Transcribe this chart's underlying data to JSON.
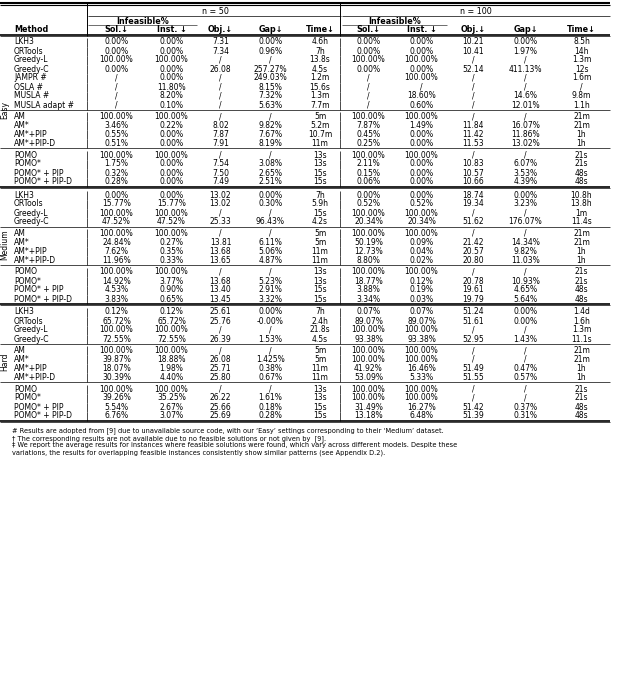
{
  "title_n50": "n = 50",
  "title_n100": "n = 100",
  "infeasible_label": "Infeasible%",
  "sections": [
    {
      "name": "Easy",
      "baselines": [
        [
          "LKH3",
          "0.00%",
          "0.00%",
          "7.31",
          "0.00%",
          "4.6h",
          "0.00%",
          "0.00%",
          "10.21",
          "0.00%",
          "8.5h"
        ],
        [
          "ORTools",
          "0.00%",
          "0.00%",
          "7.34",
          "0.96%",
          "7h",
          "0.00%",
          "0.00%",
          "10.41",
          "1.97%",
          "14h"
        ],
        [
          "Greedy-L",
          "100.00%",
          "100.00%",
          "/",
          "/",
          "13.8s",
          "100.00%",
          "100.00%",
          "/",
          "/",
          "1.3m"
        ],
        [
          "Greedy-C",
          "0.00%",
          "0.00%",
          "26.08",
          "257.27%",
          "4.5s",
          "0.00%",
          "0.00%",
          "52.14",
          "411.13%",
          "12s"
        ],
        [
          "JAMPR #",
          "/",
          "0.00%",
          "/",
          "249.03%",
          "1.2m",
          "/",
          "100.00%",
          "/",
          "/",
          "1.6m"
        ],
        [
          "OSLA #",
          "/",
          "11.80%",
          "/",
          "8.15%",
          "15.6s",
          "/",
          "/",
          "/",
          "/",
          "/"
        ],
        [
          "MUSLA #",
          "/",
          "8.20%",
          "/",
          "7.32%",
          "1.3m",
          "/",
          "18.60%",
          "/",
          "14.6%",
          "9.8m"
        ],
        [
          "MUSLA adapt #",
          "/",
          "0.10%",
          "/",
          "5.63%",
          "7.7m",
          "/",
          "0.60%",
          "/",
          "12.01%",
          "1.1h"
        ]
      ],
      "am_group": [
        [
          "AM",
          "100.00%",
          "100.00%",
          "/",
          "/",
          "5m",
          "100.00%",
          "100.00%",
          "/",
          "/",
          "21m"
        ],
        [
          "AM*",
          "3.46%",
          "0.22%",
          "8.02",
          "9.82%",
          "5.2m",
          "7.87%",
          "1.49%",
          "11.84",
          "16.07%",
          "21m"
        ],
        [
          "AM*+PIP",
          "0.55%",
          "0.00%",
          "7.87",
          "7.67%",
          "10.7m",
          "0.45%",
          "0.00%",
          "11.42",
          "11.86%",
          "1h"
        ],
        [
          "AM*+PIP-D",
          "0.51%",
          "0.00%",
          "7.91",
          "8.19%",
          "11m",
          "0.25%",
          "0.00%",
          "11.53",
          "13.02%",
          "1h"
        ]
      ],
      "pomo_group": [
        [
          "POMO",
          "100.00%",
          "100.00%",
          "/",
          "/",
          "13s",
          "100.00%",
          "100.00%",
          "/",
          "/",
          "21s"
        ],
        [
          "POMO*",
          "1.75%",
          "0.00%",
          "7.54",
          "3.08%",
          "13s",
          "2.11%",
          "0.00%",
          "10.83",
          "6.07%",
          "21s"
        ],
        [
          "POMO* + PIP",
          "0.32%",
          "0.00%",
          "7.50",
          "2.65%",
          "15s",
          "0.15%",
          "0.00%",
          "10.57",
          "3.53%",
          "48s"
        ],
        [
          "POMO* + PIP-D",
          "0.28%",
          "0.00%",
          "7.49",
          "2.51%",
          "15s",
          "0.06%",
          "0.00%",
          "10.66",
          "4.39%",
          "48s"
        ]
      ]
    },
    {
      "name": "Medium",
      "baselines": [
        [
          "LKH3",
          "0.00%",
          "0.00%",
          "13.02",
          "0.00%",
          "7h",
          "0.00%",
          "0.00%",
          "18.74",
          "0.00%",
          "10.8h"
        ],
        [
          "ORTools",
          "15.77%",
          "15.77%",
          "13.02",
          "0.30%",
          "5.9h",
          "0.52%",
          "0.52%",
          "19.34",
          "3.23%",
          "13.8h"
        ],
        [
          "Greedy-L",
          "100.00%",
          "100.00%",
          "/",
          "/",
          "15s",
          "100.00%",
          "100.00%",
          "/",
          "/",
          "1m"
        ],
        [
          "Greedy-C",
          "47.52%",
          "47.52%",
          "25.33",
          "96.43%",
          "4.2s",
          "20.34%",
          "20.34%",
          "51.62",
          "176.07%",
          "11.4s"
        ]
      ],
      "am_group": [
        [
          "AM",
          "100.00%",
          "100.00%",
          "/",
          "/",
          "5m",
          "100.00%",
          "100.00%",
          "/",
          "/",
          "21m"
        ],
        [
          "AM*",
          "24.84%",
          "0.27%",
          "13.81",
          "6.11%",
          "5m",
          "50.19%",
          "0.09%",
          "21.42",
          "14.34%",
          "21m"
        ],
        [
          "AM*+PIP",
          "7.62%",
          "0.35%",
          "13.68",
          "5.06%",
          "11m",
          "12.73%",
          "0.04%",
          "20.57",
          "9.82%",
          "1h"
        ],
        [
          "AM*+PIP-D",
          "11.96%",
          "0.33%",
          "13.65",
          "4.87%",
          "11m",
          "8.80%",
          "0.02%",
          "20.80",
          "11.03%",
          "1h"
        ]
      ],
      "pomo_group": [
        [
          "POMO",
          "100.00%",
          "100.00%",
          "/",
          "/",
          "13s",
          "100.00%",
          "100.00%",
          "/",
          "/",
          "21s"
        ],
        [
          "POMO*",
          "14.92%",
          "3.77%",
          "13.68",
          "5.23%",
          "13s",
          "18.77%",
          "0.12%",
          "20.78",
          "10.93%",
          "21s"
        ],
        [
          "POMO* + PIP",
          "4.53%",
          "0.90%",
          "13.40",
          "2.91%",
          "15s",
          "3.88%",
          "0.19%",
          "19.61",
          "4.65%",
          "48s"
        ],
        [
          "POMO* + PIP-D",
          "3.83%",
          "0.65%",
          "13.45",
          "3.32%",
          "15s",
          "3.34%",
          "0.03%",
          "19.79",
          "5.64%",
          "48s"
        ]
      ]
    },
    {
      "name": "Hard",
      "baselines": [
        [
          "LKH3",
          "0.12%",
          "0.12%",
          "25.61",
          "0.00%",
          "7h",
          "0.07%",
          "0.07%",
          "51.24",
          "0.00%",
          "1.4d"
        ],
        [
          "ORTools",
          "65.72%",
          "65.72%",
          "25.76",
          "-0.00%",
          "2.4h",
          "89.07%",
          "89.07%",
          "51.61",
          "0.00%",
          "1.6h"
        ],
        [
          "Greedy-L",
          "100.00%",
          "100.00%",
          "/",
          "/",
          "21.8s",
          "100.00%",
          "100.00%",
          "/",
          "/",
          "1.3m"
        ],
        [
          "Greedy-C",
          "72.55%",
          "72.55%",
          "26.39",
          "1.53%",
          "4.5s",
          "93.38%",
          "93.38%",
          "52.95",
          "1.43%",
          "11.1s"
        ]
      ],
      "am_group": [
        [
          "AM",
          "100.00%",
          "100.00%",
          "/",
          "/",
          "5m",
          "100.00%",
          "100.00%",
          "/",
          "/",
          "21m"
        ],
        [
          "AM*",
          "39.87%",
          "18.88%",
          "26.08",
          "1.425%",
          "5m",
          "100.00%",
          "100.00%",
          "/",
          "/",
          "21m"
        ],
        [
          "AM*+PIP",
          "18.07%",
          "1.98%",
          "25.71",
          "0.38%",
          "11m",
          "41.92%",
          "16.46%",
          "51.49",
          "0.47%",
          "1h"
        ],
        [
          "AM*+PIP-D",
          "30.39%",
          "4.40%",
          "25.80",
          "0.67%",
          "11m",
          "53.09%",
          "5.33%",
          "51.55",
          "0.57%",
          "1h"
        ]
      ],
      "pomo_group": [
        [
          "POMO",
          "100.00%",
          "100.00%",
          "/",
          "/",
          "13s",
          "100.00%",
          "100.00%",
          "/",
          "/",
          "21s"
        ],
        [
          "POMO*",
          "39.26%",
          "35.25%",
          "26.22",
          "1.61%",
          "13s",
          "100.00%",
          "100.00%",
          "/",
          "/",
          "21s"
        ],
        [
          "POMO* + PIP",
          "5.54%",
          "2.67%",
          "25.66",
          "0.18%",
          "15s",
          "31.49%",
          "16.27%",
          "51.42",
          "0.37%",
          "48s"
        ],
        [
          "POMO* + PIP-D",
          "6.76%",
          "3.07%",
          "25.69",
          "0.28%",
          "15s",
          "13.18%",
          "6.48%",
          "51.39",
          "0.31%",
          "48s"
        ]
      ]
    }
  ],
  "footnotes": [
    "# Results are adopted from [9] due to unavailable source code, with our ‘Easy’ settings corresponding to their ‘Medium’ dataset.",
    "† The corresponding results are not available due to no feasible solutions or not given by  [9].",
    "‡ We report the average results for instances where feasible solutions were found, which vary across different models. Despite these",
    "variations, the results for overlapping feasible instances consistently show similar patterns (see Appendix D.2)."
  ],
  "fig_width": 6.4,
  "fig_height": 6.87,
  "dpi": 100
}
